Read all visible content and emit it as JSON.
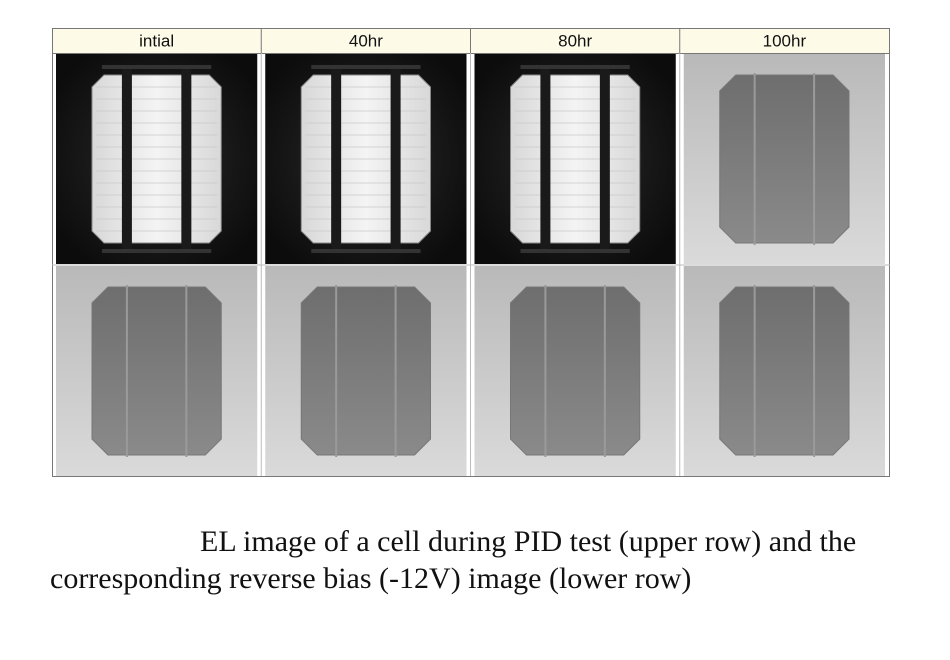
{
  "table": {
    "headers": [
      "intial",
      "40hr",
      "80hr",
      "100hr"
    ]
  },
  "caption": "EL image of a cell during PID test (upper row) and the corresponding reverse bias (-12V) image (lower row)"
}
